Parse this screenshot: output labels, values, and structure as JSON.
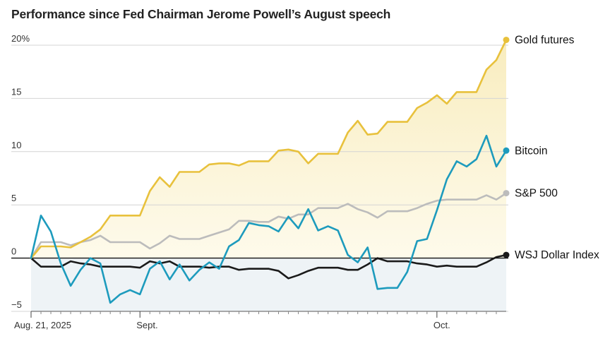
{
  "chart_data": {
    "type": "line",
    "title": "Performance since Fed Chairman Jerome Powell’s August speech",
    "xlabel": "",
    "ylabel": "",
    "ylim": [
      -5,
      20
    ],
    "y_ticks": [
      {
        "value": 20,
        "label": "20%"
      },
      {
        "value": 15,
        "label": "15"
      },
      {
        "value": 10,
        "label": "10"
      },
      {
        "value": 5,
        "label": "5"
      },
      {
        "value": 0,
        "label": "0"
      },
      {
        "value": -5,
        "label": "−5"
      }
    ],
    "x_tick_count": 48,
    "x_labels": [
      {
        "index": 0,
        "label": "Aug. 21, 2025"
      },
      {
        "index": 11,
        "label": "Sept."
      },
      {
        "index": 41,
        "label": "Oct."
      }
    ],
    "grid": true,
    "series": [
      {
        "name": "Gold futures",
        "color": "#e8c13c",
        "values": [
          0,
          1.1,
          1.1,
          1.1,
          1.0,
          1.5,
          2.0,
          2.7,
          4.0,
          4.0,
          4.0,
          4.0,
          6.3,
          7.6,
          6.7,
          8.1,
          8.1,
          8.1,
          8.8,
          8.9,
          8.9,
          8.7,
          9.1,
          9.1,
          9.1,
          10.1,
          10.2,
          10.0,
          8.9,
          9.8,
          9.8,
          9.8,
          11.8,
          12.9,
          11.6,
          11.7,
          12.8,
          12.8,
          12.8,
          14.1,
          14.6,
          15.3,
          14.5,
          15.6,
          15.6,
          15.6,
          17.7,
          18.6,
          20.5
        ]
      },
      {
        "name": "Bitcoin",
        "color": "#1d9bbd",
        "values": [
          0,
          4.0,
          2.5,
          -0.5,
          -2.6,
          -1.1,
          0,
          -0.5,
          -4.2,
          -3.4,
          -3.0,
          -3.4,
          -1.0,
          -0.3,
          -2.0,
          -0.6,
          -2.1,
          -1.1,
          -0.4,
          -1.0,
          1.1,
          1.7,
          3.3,
          3.1,
          3.0,
          2.5,
          3.9,
          2.8,
          4.6,
          2.6,
          3.0,
          2.6,
          0.3,
          -0.4,
          1.0,
          -2.9,
          -2.8,
          -2.8,
          -1.3,
          1.6,
          1.8,
          4.5,
          7.4,
          9.1,
          8.6,
          9.3,
          11.5,
          8.6,
          10.1
        ]
      },
      {
        "name": "S&P 500",
        "color": "#bcbcbc",
        "values": [
          0,
          1.5,
          1.5,
          1.5,
          1.2,
          1.5,
          1.7,
          2.1,
          1.5,
          1.5,
          1.5,
          1.5,
          0.9,
          1.4,
          2.1,
          1.8,
          1.8,
          1.8,
          2.1,
          2.4,
          2.7,
          3.5,
          3.5,
          3.4,
          3.4,
          3.9,
          3.7,
          4.1,
          4.1,
          4.7,
          4.7,
          4.7,
          5.1,
          4.6,
          4.3,
          3.8,
          4.4,
          4.4,
          4.4,
          4.7,
          5.1,
          5.4,
          5.5,
          5.5,
          5.5,
          5.5,
          5.9,
          5.5,
          6.1
        ]
      },
      {
        "name": "WSJ Dollar Index",
        "color": "#1a1a1a",
        "values": [
          0,
          -0.8,
          -0.8,
          -0.8,
          -0.3,
          -0.5,
          -0.6,
          -0.8,
          -0.8,
          -0.8,
          -0.8,
          -0.9,
          -0.3,
          -0.5,
          -0.3,
          -0.8,
          -0.8,
          -0.8,
          -0.9,
          -0.8,
          -0.8,
          -1.1,
          -1.0,
          -1.0,
          -1.0,
          -1.2,
          -1.9,
          -1.6,
          -1.2,
          -0.9,
          -0.9,
          -0.9,
          -1.1,
          -1.1,
          -0.6,
          0,
          -0.3,
          -0.3,
          -0.3,
          -0.5,
          -0.6,
          -0.8,
          -0.7,
          -0.8,
          -0.8,
          -0.8,
          -0.4,
          0.1,
          0.3
        ]
      }
    ]
  }
}
